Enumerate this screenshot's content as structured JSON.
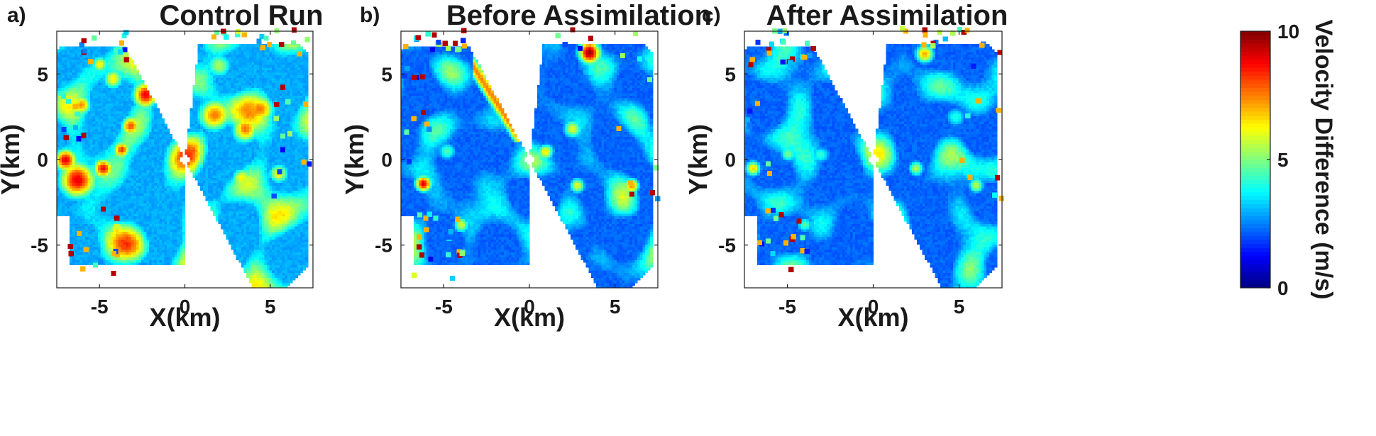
{
  "chart_data": [
    {
      "type": "heatmap",
      "panel_label": "a)",
      "title": "Control Run",
      "xlabel": "X(km)",
      "ylabel": "Y(km)",
      "xlim": [
        -7.5,
        7.5
      ],
      "ylim": [
        -7.5,
        7.5
      ],
      "xticks": [
        -5,
        0,
        5
      ],
      "yticks": [
        -5,
        0,
        5
      ],
      "xtick_labels": [
        "-5",
        "0",
        "5"
      ],
      "ytick_labels": [
        "-5",
        "0",
        "5"
      ],
      "grid": false,
      "blobs": [
        {
          "x": -6.3,
          "y": -1.2,
          "r": 1.1,
          "v": 8.5
        },
        {
          "x": -7.0,
          "y": 0.0,
          "r": 0.7,
          "v": 8.0
        },
        {
          "x": -4.8,
          "y": -0.5,
          "r": 0.6,
          "v": 7.5
        },
        {
          "x": -3.7,
          "y": 0.6,
          "r": 0.5,
          "v": 7.0
        },
        {
          "x": -2.3,
          "y": 3.8,
          "r": 0.8,
          "v": 8.0
        },
        {
          "x": -4.2,
          "y": 4.7,
          "r": 0.6,
          "v": 6.0
        },
        {
          "x": -6.0,
          "y": 3.2,
          "r": 0.6,
          "v": 6.0
        },
        {
          "x": -3.2,
          "y": 2.0,
          "r": 0.6,
          "v": 6.5
        },
        {
          "x": 1.7,
          "y": 2.6,
          "r": 1.0,
          "v": 7.0
        },
        {
          "x": 3.5,
          "y": 1.7,
          "r": 0.8,
          "v": 6.5
        },
        {
          "x": 4.5,
          "y": 3.0,
          "r": 0.9,
          "v": 5.5
        },
        {
          "x": 2.0,
          "y": 5.5,
          "r": 0.8,
          "v": 5.0
        },
        {
          "x": 5.5,
          "y": -0.8,
          "r": 0.6,
          "v": 6.0
        },
        {
          "x": 3.3,
          "y": -1.0,
          "r": 0.6,
          "v": 5.0
        },
        {
          "x": -4.0,
          "y": -4.0,
          "r": 0.5,
          "v": 5.0
        },
        {
          "x": -5.0,
          "y": 5.6,
          "r": 0.5,
          "v": 5.5
        }
      ]
    },
    {
      "type": "heatmap",
      "panel_label": "b)",
      "title": "Before Assimilation",
      "xlabel": "X(km)",
      "ylabel": "Y(km)",
      "xlim": [
        -7.5,
        7.5
      ],
      "ylim": [
        -7.5,
        7.5
      ],
      "xticks": [
        -5,
        0,
        5
      ],
      "yticks": [
        -5,
        0,
        5
      ],
      "xtick_labels": [
        "-5",
        "0",
        "5"
      ],
      "ytick_labels": [
        "-5",
        "0",
        "5"
      ],
      "grid": false,
      "blobs": [
        {
          "x": -6.2,
          "y": -1.4,
          "r": 0.5,
          "v": 8.5
        },
        {
          "x": -2.0,
          "y": 4.5,
          "r": 0.6,
          "v": 8.0
        },
        {
          "x": -1.5,
          "y": 3.3,
          "r": 0.5,
          "v": 8.5
        },
        {
          "x": -2.6,
          "y": 5.5,
          "r": 0.5,
          "v": 6.5
        },
        {
          "x": 3.5,
          "y": 6.3,
          "r": 0.7,
          "v": 9.5
        },
        {
          "x": 2.5,
          "y": 1.8,
          "r": 0.6,
          "v": 5.5
        },
        {
          "x": 1.0,
          "y": 0.5,
          "r": 0.5,
          "v": 6.0
        },
        {
          "x": 2.8,
          "y": -1.5,
          "r": 0.5,
          "v": 6.0
        },
        {
          "x": 6.0,
          "y": -1.5,
          "r": 0.5,
          "v": 6.5
        },
        {
          "x": -4.8,
          "y": 0.5,
          "r": 0.6,
          "v": 4.5
        },
        {
          "x": -4.0,
          "y": -3.8,
          "r": 0.5,
          "v": 5.5
        }
      ]
    },
    {
      "type": "heatmap",
      "panel_label": "c)",
      "title": "After Assimilation",
      "xlabel": "X(km)",
      "ylabel": "Y(km)",
      "xlim": [
        -7.5,
        7.5
      ],
      "ylim": [
        -7.5,
        7.5
      ],
      "xticks": [
        -5,
        0,
        5
      ],
      "yticks": [
        -5,
        0,
        5
      ],
      "xtick_labels": [
        "-5",
        "0",
        "5"
      ],
      "ytick_labels": [
        "-5",
        "0",
        "5"
      ],
      "grid": false,
      "blobs": [
        {
          "x": -7.0,
          "y": -0.5,
          "r": 0.5,
          "v": 6.5
        },
        {
          "x": 3.0,
          "y": 6.2,
          "r": 0.6,
          "v": 7.0
        },
        {
          "x": 2.5,
          "y": -0.5,
          "r": 0.5,
          "v": 5.5
        },
        {
          "x": -3.0,
          "y": 0.3,
          "r": 0.6,
          "v": 4.0
        },
        {
          "x": -5.0,
          "y": 0.3,
          "r": 0.5,
          "v": 4.5
        },
        {
          "x": 4.8,
          "y": 2.5,
          "r": 0.7,
          "v": 4.0
        },
        {
          "x": 6.0,
          "y": -1.5,
          "r": 0.5,
          "v": 5.5
        },
        {
          "x": -4.0,
          "y": -3.8,
          "r": 0.5,
          "v": 4.5
        }
      ]
    }
  ],
  "colorbar": {
    "label": "Velocity Difference (m/s)",
    "min": 0,
    "max": 10,
    "ticks": [
      0,
      5,
      10
    ],
    "tick_labels": [
      "0",
      "5",
      "10"
    ],
    "colormap": "jet"
  }
}
